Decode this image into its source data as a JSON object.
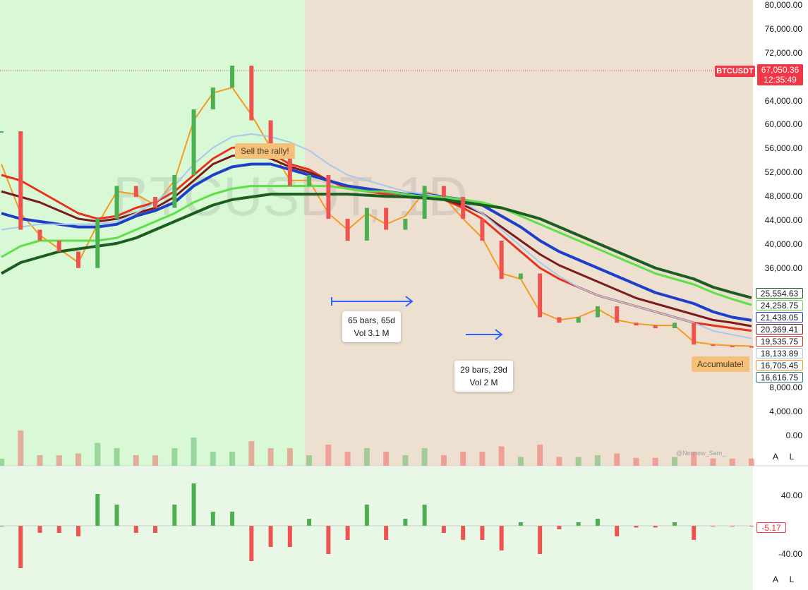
{
  "symbol": "BTCUSDT",
  "watermark_text": "BTCUSDT, 1D",
  "author_tag": "@Nesnew_Sam_",
  "last_price": "67,050.36",
  "countdown": "12:35:49",
  "price_axis": [
    "80,000.00",
    "76,000.00",
    "72,000.00",
    "68,000.00",
    "64,000.00",
    "60,000.00",
    "56,000.00",
    "52,000.00",
    "48,000.00",
    "44,000.00",
    "40,000.00",
    "36,000.00",
    "32,000.00",
    "28,000.00",
    "24,000.00",
    "12,000.00",
    "8,000.00",
    "4,000.00",
    "0.00"
  ],
  "osc_axis": [
    "40.00",
    "-40.00"
  ],
  "osc_last": "-5.17",
  "ma_badges": [
    {
      "value": "25,554.63",
      "color": "#1b5e20"
    },
    {
      "value": "24,258.75",
      "color": "#5ee047"
    },
    {
      "value": "21,438.05",
      "color": "#1e40c8"
    },
    {
      "value": "20,369.41",
      "color": "#7b1b1b"
    },
    {
      "value": "19,535.75",
      "color": "#e8321e"
    },
    {
      "value": "18,133.89",
      "color": "#a8c8ec"
    },
    {
      "value": "16,705.45",
      "color": "#f59a23"
    },
    {
      "value": "16,616.75",
      "color": "#1b7a7a"
    }
  ],
  "annotations": {
    "sell": "Sell the rally!",
    "accumulate": "Accumulate!",
    "measure1_line1": "65 bars, 65d",
    "measure1_line2": "Vol 3.1 M",
    "measure2_line1": "29 bars, 29d",
    "measure2_line2": "Vol 2 M"
  },
  "buttons": {
    "auto": "A",
    "log": "L"
  },
  "colors": {
    "bull_zone": "#d8f8d6",
    "bear_zone": "#ede0d0",
    "up_candle": "#4caf50",
    "down_candle": "#ef5350",
    "accent": "#f23645"
  },
  "chart_data": {
    "type": "line",
    "title": "",
    "xlabel": "",
    "ylabel": "",
    "ylim": [
      0,
      80000
    ],
    "grid": false,
    "series": [
      {
        "name": "BTCUSDT",
        "values": [
          56000,
          38000,
          36000,
          34000,
          31000,
          40000,
          46000,
          44000,
          42000,
          48000,
          60000,
          64000,
          68000,
          58000,
          52000,
          46000,
          48000,
          40000,
          36000,
          42000,
          38000,
          40000,
          46000,
          44000,
          40000,
          36000,
          29000,
          30000,
          22000,
          21000,
          22000,
          24000,
          21000,
          20500,
          20000,
          21000,
          17000,
          16800,
          16700,
          16616
        ]
      },
      {
        "values": [
          50000,
          41000,
          37000,
          34500,
          32000,
          39000,
          45000,
          44500,
          42500,
          47000,
          58000,
          63000,
          64000,
          59000,
          53000,
          47000,
          47000,
          41000,
          38000,
          41000,
          39000,
          40500,
          45000,
          44000,
          40000,
          36500,
          30000,
          29000,
          23000,
          21500,
          22000,
          23500,
          21500,
          20800,
          20500,
          20500,
          17500,
          17000,
          16800,
          16705
        ]
      },
      {
        "values": [
          48000,
          47000,
          45000,
          43000,
          41000,
          40000,
          40500,
          42000,
          43000,
          45000,
          48000,
          51000,
          53000,
          53000,
          52000,
          50000,
          49000,
          47000,
          45500,
          45000,
          44500,
          44000,
          44000,
          43500,
          42000,
          40000,
          37000,
          34000,
          31000,
          29000,
          27500,
          26000,
          25000,
          24000,
          23000,
          22000,
          21000,
          20500,
          20000,
          19535
        ]
      },
      {
        "values": [
          45000,
          44000,
          43000,
          41500,
          40000,
          39500,
          40000,
          41000,
          42000,
          44000,
          47000,
          50000,
          51500,
          52000,
          51000,
          49500,
          48500,
          47000,
          46000,
          45500,
          45000,
          44500,
          44000,
          43500,
          42500,
          41000,
          38500,
          36000,
          33500,
          31500,
          30000,
          28500,
          27000,
          25500,
          24500,
          23500,
          22500,
          21500,
          21000,
          20369
        ]
      },
      {
        "values": [
          41000,
          40000,
          39500,
          39000,
          38500,
          38500,
          39000,
          40500,
          41500,
          43000,
          46000,
          48000,
          49500,
          50000,
          50000,
          49000,
          48000,
          47000,
          46000,
          45500,
          45000,
          44500,
          44500,
          44000,
          43500,
          42500,
          40500,
          38500,
          36000,
          34000,
          32500,
          31000,
          29500,
          28000,
          26500,
          25500,
          24500,
          23000,
          22000,
          21438
        ]
      },
      {
        "values": [
          38000,
          38500,
          39000,
          39000,
          39000,
          39000,
          39500,
          41000,
          43000,
          46000,
          50000,
          53000,
          55000,
          55500,
          55000,
          54000,
          52500,
          50000,
          48000,
          47000,
          46000,
          45000,
          44500,
          44000,
          43000,
          41000,
          38000,
          35000,
          32000,
          29500,
          27500,
          26000,
          25000,
          24000,
          23000,
          22000,
          21000,
          19500,
          18800,
          18133
        ]
      },
      {
        "values": [
          33000,
          35000,
          36000,
          36000,
          36000,
          36000,
          36500,
          38000,
          39500,
          41000,
          43000,
          44500,
          45500,
          46000,
          46000,
          46000,
          46000,
          46000,
          45500,
          45000,
          45000,
          44500,
          44000,
          44000,
          43500,
          43000,
          42000,
          40500,
          39000,
          37500,
          36000,
          34500,
          33000,
          31500,
          30000,
          29000,
          28000,
          26500,
          25300,
          24258
        ]
      },
      {
        "values": [
          30000,
          32000,
          33000,
          34000,
          34500,
          35000,
          35500,
          36500,
          38000,
          39500,
          41000,
          42500,
          43500,
          44000,
          44500,
          44500,
          44500,
          44500,
          44500,
          44300,
          44100,
          44000,
          43800,
          43500,
          43000,
          42500,
          42000,
          41000,
          40000,
          38500,
          37000,
          35500,
          34000,
          32500,
          31000,
          30000,
          29000,
          27500,
          26500,
          25554
        ]
      }
    ]
  }
}
